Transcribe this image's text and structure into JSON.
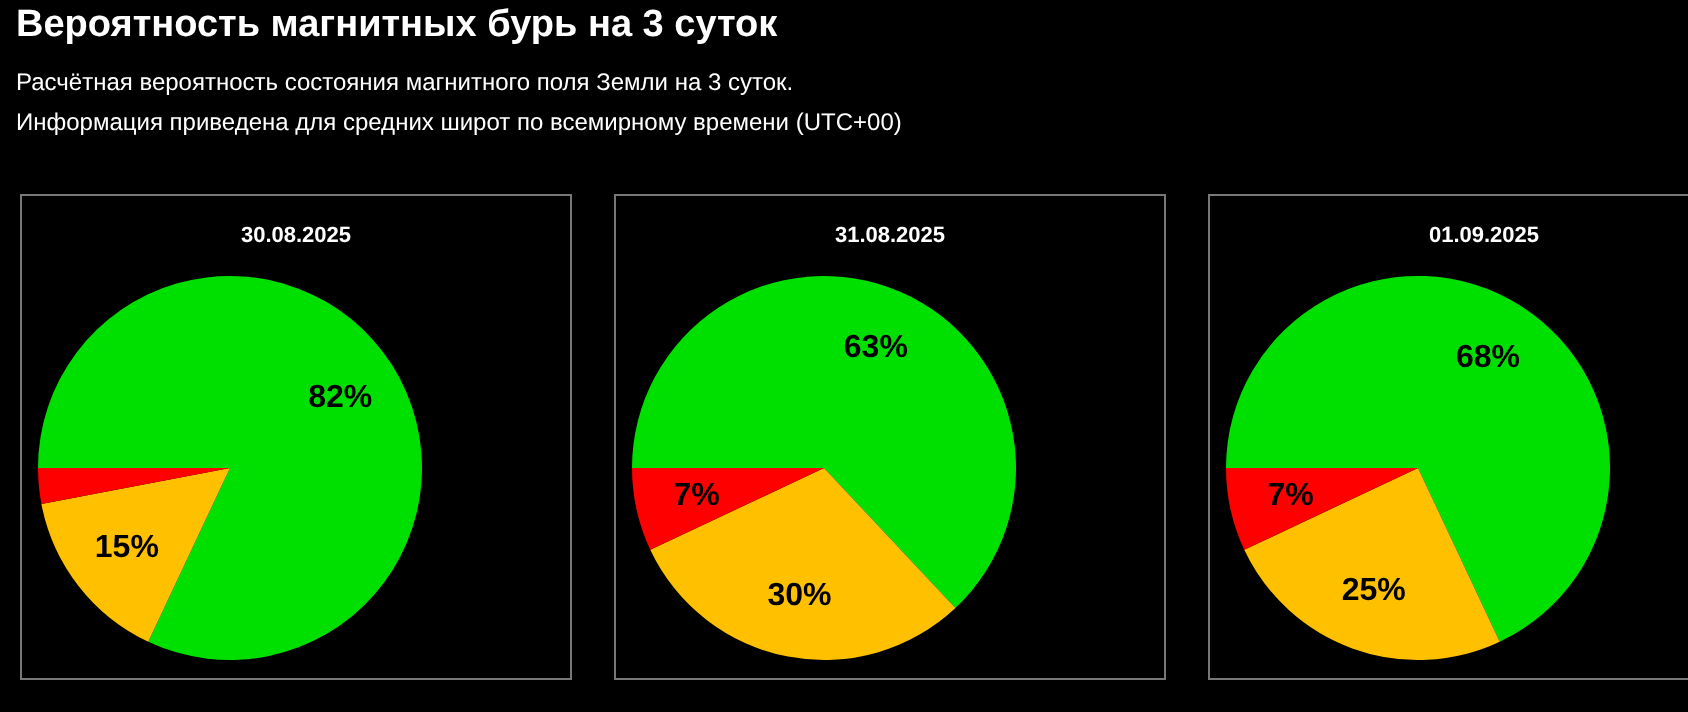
{
  "chart_data": [
    {
      "type": "pie",
      "title": "30.08.2025",
      "annotations": [
        "Вероятность магнитных бурь на 3 суток",
        "Расчётная вероятность состояния магнитного поля Земли на 3 суток.",
        "Информация приведена для средних широт по всемирному времени (UTC+00)"
      ],
      "categories": [
        null,
        null,
        null
      ],
      "values": [
        82,
        15,
        3
      ],
      "colors": [
        "#00e000",
        "#ffc000",
        "#ff0000"
      ],
      "value_labels": [
        "82%",
        "15%",
        null
      ]
    },
    {
      "type": "pie",
      "title": "31.08.2025",
      "categories": [
        null,
        null,
        null
      ],
      "values": [
        63,
        30,
        7
      ],
      "colors": [
        "#00e000",
        "#ffc000",
        "#ff0000"
      ],
      "value_labels": [
        "63%",
        "30%",
        "7%"
      ]
    },
    {
      "type": "pie",
      "title": "01.09.2025",
      "categories": [
        null,
        null,
        null
      ],
      "values": [
        68,
        25,
        7
      ],
      "colors": [
        "#00e000",
        "#ffc000",
        "#ff0000"
      ],
      "value_labels": [
        "68%",
        "25%",
        "7%"
      ]
    }
  ]
}
